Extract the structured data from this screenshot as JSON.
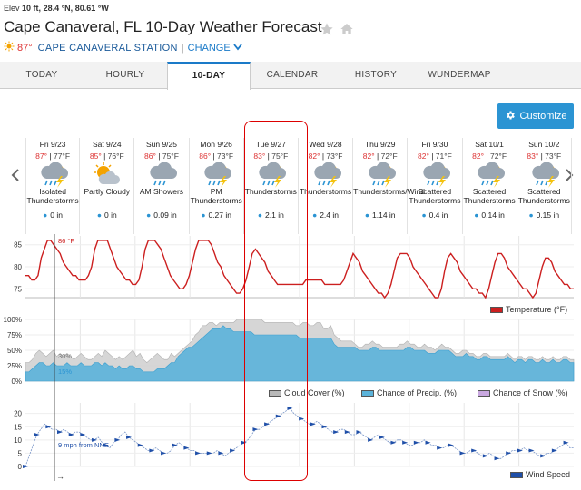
{
  "meta": {
    "elev_label": "Elev",
    "elev_value": "10 ft,",
    "lat": "28.4 °N,",
    "lon": "80.61 °W"
  },
  "title": "Cape Canaveral, FL 10-Day Weather Forecast",
  "location": {
    "current_temp": "87°",
    "station": "CAPE CANAVERAL STATION",
    "separator": "|",
    "change": "CHANGE"
  },
  "tabs": [
    "TODAY",
    "HOURLY",
    "10-DAY",
    "CALENDAR",
    "HISTORY",
    "WUNDERMAP"
  ],
  "active_tab": "10-DAY",
  "customize_label": "Customize",
  "days": [
    {
      "date": "Fri 9/23",
      "hi": "87°",
      "lo": "77°F",
      "icon": "thunderstorm-icon",
      "cond1": "Isolated",
      "cond2": "Thunderstorms",
      "precip": "0 in"
    },
    {
      "date": "Sat 9/24",
      "hi": "85°",
      "lo": "76°F",
      "icon": "partly-cloudy-icon",
      "cond1": "Partly Cloudy",
      "cond2": "",
      "precip": "0 in"
    },
    {
      "date": "Sun 9/25",
      "hi": "86°",
      "lo": "75°F",
      "icon": "rain-icon",
      "cond1": "AM Showers",
      "cond2": "",
      "precip": "0.09 in"
    },
    {
      "date": "Mon 9/26",
      "hi": "86°",
      "lo": "73°F",
      "icon": "thunderstorm-icon",
      "cond1": "PM",
      "cond2": "Thunderstorms",
      "precip": "0.27 in"
    },
    {
      "date": "Tue 9/27",
      "hi": "83°",
      "lo": "75°F",
      "icon": "thunderstorm-icon",
      "cond1": "Thunderstorms",
      "cond2": "",
      "precip": "2.1 in"
    },
    {
      "date": "Wed 9/28",
      "hi": "82°",
      "lo": "73°F",
      "icon": "thunderstorm-icon",
      "cond1": "Thunderstorms",
      "cond2": "",
      "precip": "2.4 in"
    },
    {
      "date": "Thu 9/29",
      "hi": "82°",
      "lo": "72°F",
      "icon": "thunderstorm-icon",
      "cond1": "Thunderstorms/Wind",
      "cond2": "",
      "precip": "1.14 in"
    },
    {
      "date": "Fri 9/30",
      "hi": "82°",
      "lo": "71°F",
      "icon": "thunderstorm-icon",
      "cond1": "Scattered",
      "cond2": "Thunderstorms",
      "precip": "0.4 in"
    },
    {
      "date": "Sat 10/1",
      "hi": "82°",
      "lo": "72°F",
      "icon": "thunderstorm-icon",
      "cond1": "Scattered",
      "cond2": "Thunderstorms",
      "precip": "0.14 in"
    },
    {
      "date": "Sun 10/2",
      "hi": "83°",
      "lo": "73°F",
      "icon": "thunderstorm-icon",
      "cond1": "Scattered",
      "cond2": "Thunderstorms",
      "precip": "0.15 in"
    }
  ],
  "cursor": {
    "time_label": "12 PM",
    "temp_label": "86 °F",
    "cloud_label": "30%",
    "precip_label": "15%",
    "wind_label": "9 mph from NNE"
  },
  "legends": {
    "temperature": "Temperature (°F)",
    "cloud_cover": "Cloud Cover (%)",
    "precip_chance": "Chance of Precip. (%)",
    "snow_chance": "Chance of Snow (%)",
    "wind_speed": "Wind Speed"
  },
  "colors": {
    "temperature": "#cc1f1f",
    "cloud": "#cfcfcf",
    "precip": "#5bb3da",
    "wind": "#1f4fa8",
    "accent": "#2b94d3",
    "highlight": "#dd0000"
  },
  "chart_data": [
    {
      "type": "line",
      "series": [
        {
          "name": "Temperature (°F)",
          "hourly": [
            78,
            78,
            77,
            77,
            78,
            82,
            84,
            86,
            86,
            85,
            84,
            83,
            81,
            80,
            79,
            78,
            78,
            77,
            77,
            77,
            78,
            80,
            84,
            86,
            86,
            86,
            86,
            84,
            82,
            80,
            79,
            78,
            77,
            77,
            76,
            76,
            77,
            80,
            84,
            86,
            86,
            86,
            85,
            84,
            82,
            80,
            78,
            77,
            76,
            75,
            75,
            76,
            78,
            81,
            84,
            86,
            86,
            86,
            86,
            85,
            83,
            81,
            80,
            78,
            77,
            76,
            75,
            74,
            74,
            75,
            77,
            80,
            83,
            84,
            83,
            82,
            81,
            79,
            78,
            77,
            76,
            76,
            76,
            76,
            76,
            76,
            76,
            76,
            76,
            77,
            77,
            77,
            77,
            77,
            77,
            76,
            76,
            76,
            76,
            76,
            76,
            77,
            79,
            81,
            83,
            82,
            81,
            79,
            78,
            77,
            76,
            75,
            74,
            74,
            73,
            74,
            76,
            79,
            82,
            83,
            83,
            83,
            82,
            80,
            79,
            78,
            77,
            76,
            75,
            74,
            73,
            73,
            75,
            79,
            82,
            83,
            82,
            81,
            79,
            78,
            77,
            76,
            75,
            75,
            74,
            74,
            73,
            75,
            78,
            81,
            83,
            83,
            82,
            80,
            79,
            78,
            77,
            76,
            75,
            75,
            74,
            73,
            74,
            77,
            80,
            82,
            82,
            81,
            79,
            78,
            77,
            76,
            76,
            75,
            75
          ]
        }
      ],
      "yticks": [
        75,
        80,
        85
      ],
      "ylim": [
        73,
        87
      ]
    },
    {
      "type": "area",
      "series": [
        {
          "name": "Cloud Cover (%)",
          "hourly": [
            30,
            30,
            35,
            45,
            50,
            45,
            40,
            45,
            50,
            40,
            45,
            40,
            45,
            40,
            35,
            40,
            45,
            40,
            35,
            35,
            40,
            45,
            40,
            50,
            45,
            40,
            35,
            40,
            35,
            40,
            45,
            50,
            40,
            45,
            35,
            30,
            35,
            40,
            45,
            40,
            35,
            35,
            45,
            40,
            45,
            50,
            55,
            60,
            65,
            75,
            80,
            90,
            90,
            95,
            95,
            90,
            95,
            95,
            95,
            95,
            95,
            100,
            100,
            100,
            100,
            100,
            100,
            100,
            100,
            95,
            95,
            95,
            95,
            95,
            95,
            95,
            95,
            95,
            90,
            90,
            95,
            95,
            90,
            90,
            95,
            95,
            85,
            85,
            90,
            75,
            70,
            65,
            65,
            65,
            65,
            60,
            55,
            55,
            60,
            60,
            65,
            60,
            60,
            55,
            55,
            55,
            55,
            55,
            60,
            60,
            65,
            60,
            60,
            55,
            55,
            60,
            55,
            55,
            50,
            55,
            60,
            55,
            55,
            50,
            45,
            45,
            50,
            50,
            45,
            45,
            40,
            40,
            45,
            45,
            40,
            40,
            40,
            40,
            40,
            45,
            40,
            35,
            40,
            40,
            35,
            40,
            40,
            35,
            35,
            40,
            35,
            35,
            40,
            35,
            35,
            40,
            40,
            35,
            35
          ]
        },
        {
          "name": "Chance of Precip. (%)",
          "hourly": [
            15,
            15,
            20,
            25,
            30,
            30,
            25,
            25,
            30,
            25,
            25,
            25,
            30,
            25,
            25,
            25,
            30,
            25,
            25,
            25,
            30,
            30,
            25,
            30,
            25,
            25,
            20,
            25,
            20,
            20,
            25,
            25,
            20,
            20,
            15,
            15,
            15,
            15,
            20,
            20,
            20,
            25,
            30,
            30,
            40,
            45,
            50,
            55,
            55,
            60,
            65,
            70,
            75,
            80,
            85,
            85,
            85,
            90,
            85,
            85,
            80,
            80,
            80,
            80,
            80,
            80,
            75,
            75,
            75,
            75,
            75,
            75,
            75,
            75,
            75,
            75,
            75,
            75,
            75,
            70,
            70,
            70,
            70,
            70,
            70,
            70,
            70,
            70,
            70,
            60,
            55,
            55,
            55,
            55,
            55,
            55,
            50,
            50,
            50,
            50,
            55,
            55,
            50,
            50,
            50,
            50,
            50,
            50,
            50,
            50,
            55,
            55,
            50,
            50,
            50,
            50,
            45,
            45,
            45,
            50,
            50,
            50,
            50,
            45,
            40,
            40,
            40,
            45,
            40,
            40,
            35,
            35,
            40,
            40,
            35,
            35,
            35,
            35,
            35,
            40,
            35,
            30,
            35,
            35,
            30,
            35,
            35,
            30,
            30,
            35,
            30,
            30,
            35,
            30,
            30,
            35,
            35,
            30,
            30
          ]
        },
        {
          "name": "Chance of Snow (%)",
          "hourly": []
        }
      ],
      "yticks": [
        "0%",
        "25%",
        "50%",
        "75%",
        "100%"
      ],
      "ylim": [
        0,
        100
      ]
    },
    {
      "type": "line",
      "series": [
        {
          "name": "Wind Speed",
          "hourly": [
            0,
            4,
            8,
            12,
            14,
            16,
            15,
            14,
            14,
            13,
            14,
            13,
            12,
            13,
            13,
            12,
            11,
            10,
            10,
            11,
            9,
            8,
            7,
            9,
            10,
            12,
            13,
            11,
            10,
            9,
            8,
            7,
            6,
            6,
            7,
            6,
            5,
            5,
            6,
            8,
            9,
            8,
            7,
            6,
            6,
            5,
            5,
            5,
            5,
            5,
            6,
            5,
            4,
            5,
            6,
            7,
            8,
            9,
            10,
            12,
            14,
            14,
            15,
            16,
            17,
            18,
            19,
            20,
            21,
            22,
            20,
            19,
            18,
            17,
            16,
            16,
            17,
            16,
            15,
            14,
            13,
            13,
            14,
            14,
            13,
            12,
            12,
            13,
            12,
            11,
            10,
            11,
            12,
            11,
            10,
            9,
            9,
            10,
            10,
            9,
            8,
            8,
            9,
            9,
            10,
            9,
            8,
            8,
            7,
            7,
            8,
            8,
            7,
            6,
            5,
            5,
            6,
            6,
            5,
            4,
            4,
            5,
            4,
            3,
            3,
            4,
            5,
            6,
            6,
            6,
            7,
            6,
            6,
            5,
            4,
            4,
            5,
            5,
            6,
            7,
            8,
            9,
            7,
            7
          ]
        }
      ],
      "yticks": [
        0,
        5,
        10,
        15,
        20
      ],
      "ylim": [
        0,
        24
      ]
    }
  ]
}
